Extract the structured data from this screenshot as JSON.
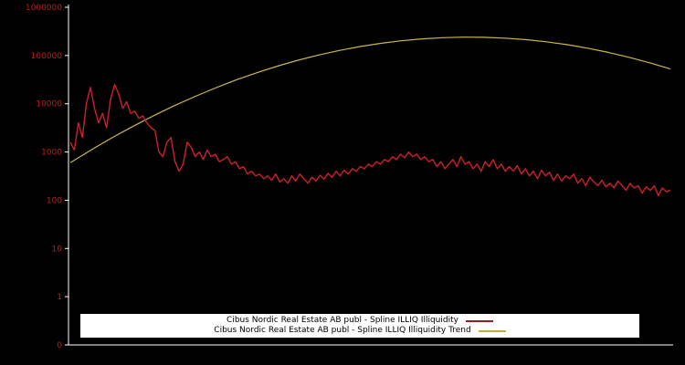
{
  "chart": {
    "background": "#000000",
    "axis_color": "#ffffff",
    "tick_label_color": "#c41a1a",
    "legend_background": "#ffffff",
    "legend_text_color": "#000000",
    "legend": [
      {
        "label": "Cibus Nordic Real Estate AB publ - Spline ILLIQ Illiquidity",
        "color": "#9b1c1c"
      },
      {
        "label": "Cibus Nordic Real Estate AB publ - Spline ILLIQ Illiquidity Trend",
        "color": "#bfae3e"
      }
    ]
  },
  "chart_data": {
    "type": "line",
    "title": "",
    "xlabel": "",
    "ylabel": "",
    "yscale": "log",
    "ylim": [
      0.1,
      1000000
    ],
    "grid": false,
    "legend_position": "bottom-center",
    "x_tick_labels": [],
    "y_tick_labels": [
      "1000000",
      "100000",
      "10000",
      "1000",
      "100",
      "10",
      "1",
      "0"
    ],
    "y_tick_values": [
      1000000,
      100000,
      10000,
      1000,
      100,
      10,
      1,
      0.1
    ],
    "series": [
      {
        "name": "Cibus Nordic Real Estate AB publ - Spline ILLIQ Illiquidity",
        "color": "#cc2128",
        "values": [
          1600,
          1100,
          4000,
          2000,
          10000,
          22000,
          8000,
          4000,
          6300,
          3200,
          12500,
          25000,
          16000,
          8000,
          11000,
          6300,
          7000,
          5000,
          5600,
          4000,
          3200,
          2800,
          1000,
          800,
          1600,
          2000,
          630,
          400,
          560,
          1600,
          1250,
          800,
          1000,
          700,
          1100,
          800,
          900,
          630,
          700,
          800,
          560,
          630,
          450,
          500,
          350,
          400,
          320,
          350,
          280,
          320,
          260,
          350,
          240,
          280,
          225,
          320,
          250,
          350,
          280,
          225,
          300,
          250,
          330,
          275,
          360,
          300,
          400,
          320,
          420,
          350,
          450,
          400,
          500,
          450,
          560,
          500,
          630,
          560,
          700,
          630,
          800,
          700,
          900,
          760,
          1000,
          800,
          900,
          700,
          800,
          630,
          700,
          500,
          630,
          450,
          560,
          700,
          500,
          800,
          560,
          630,
          450,
          560,
          400,
          630,
          500,
          700,
          450,
          560,
          400,
          500,
          400,
          520,
          350,
          450,
          320,
          400,
          280,
          420,
          320,
          380,
          260,
          350,
          250,
          320,
          280,
          350,
          225,
          280,
          200,
          300,
          240,
          200,
          260,
          190,
          225,
          180,
          250,
          200,
          160,
          225,
          180,
          200,
          140,
          190,
          160,
          200,
          125,
          180,
          150,
          160
        ]
      },
      {
        "name": "Cibus Nordic Real Estate AB publ - Spline ILLIQ Illiquidity Trend",
        "color": "#c9b846",
        "values": [
          600,
          1100,
          1960,
          3360,
          5590,
          9010,
          14000,
          21200,
          31000,
          43900,
          60100,
          79800,
          102600,
          127600,
          153800,
          179300,
          202500,
          221600,
          234600,
          240500,
          238800,
          229600,
          213600,
          192600,
          168100,
          142000,
          116200,
          92000,
          70600,
          52500
        ]
      }
    ]
  }
}
